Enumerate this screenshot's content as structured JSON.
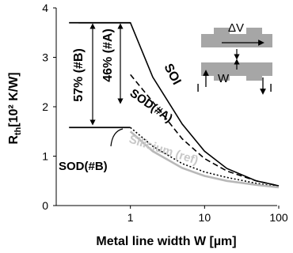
{
  "chart_data": {
    "type": "line",
    "xscale": "log",
    "xlim": [
      0.1,
      100
    ],
    "ylim": [
      0,
      4
    ],
    "xticks": [
      1,
      10,
      100
    ],
    "xtick_labels": [
      "1",
      "10",
      "100"
    ],
    "yticks": [
      0,
      1,
      2,
      3,
      4
    ],
    "ytick_labels": [
      "0",
      "1",
      "2",
      "3",
      "4"
    ],
    "xlabel": "Metal line width W [µm]",
    "ylabel_main": "R",
    "ylabel_sub": "th",
    "ylabel_rest": "[10² K/W]",
    "grid": false,
    "series": [
      {
        "name": "SOI",
        "style": "solid",
        "color": "#000000",
        "points": [
          [
            0.2,
            3.7
          ],
          [
            1,
            3.7
          ],
          [
            2,
            2.6
          ],
          [
            5,
            1.65
          ],
          [
            10,
            1.1
          ],
          [
            20,
            0.75
          ],
          [
            50,
            0.5
          ],
          [
            100,
            0.4
          ]
        ]
      },
      {
        "name": "SOD(#A)",
        "style": "dashed",
        "color": "#000000",
        "points": [
          [
            1,
            2.65
          ],
          [
            2,
            2.1
          ],
          [
            5,
            1.35
          ],
          [
            10,
            0.95
          ],
          [
            20,
            0.7
          ],
          [
            50,
            0.5
          ],
          [
            100,
            0.4
          ]
        ]
      },
      {
        "name": "SOD(#B)",
        "style": "dotted",
        "color": "#000000",
        "points": [
          [
            1,
            1.58
          ],
          [
            2,
            1.2
          ],
          [
            5,
            0.85
          ],
          [
            10,
            0.68
          ],
          [
            20,
            0.57
          ],
          [
            50,
            0.45
          ],
          [
            100,
            0.38
          ]
        ]
      },
      {
        "name": "Silicium (ref)",
        "style": "solid",
        "color": "#b8b8b8",
        "points": [
          [
            1,
            1.5
          ],
          [
            2,
            1.1
          ],
          [
            5,
            0.76
          ],
          [
            10,
            0.6
          ],
          [
            20,
            0.5
          ],
          [
            50,
            0.42
          ],
          [
            100,
            0.37
          ]
        ]
      }
    ],
    "reference_lines": [
      {
        "name": "top",
        "x": [
          0.2,
          1
        ],
        "y": 3.7
      },
      {
        "name": "mid",
        "x": [
          0.2,
          1
        ],
        "y": 1.58
      }
    ],
    "annotations": {
      "pct_b": "57% (#B)",
      "pct_a": "46% (#A)",
      "label_soi": "SOI",
      "label_soda": "SOD(#A)",
      "label_sodb": "SOD(#B)",
      "label_si": "Silicium (ref)"
    },
    "inset": {
      "delta_v": "ΔV",
      "w": "W",
      "i_left": "I",
      "i_right": "I"
    }
  }
}
